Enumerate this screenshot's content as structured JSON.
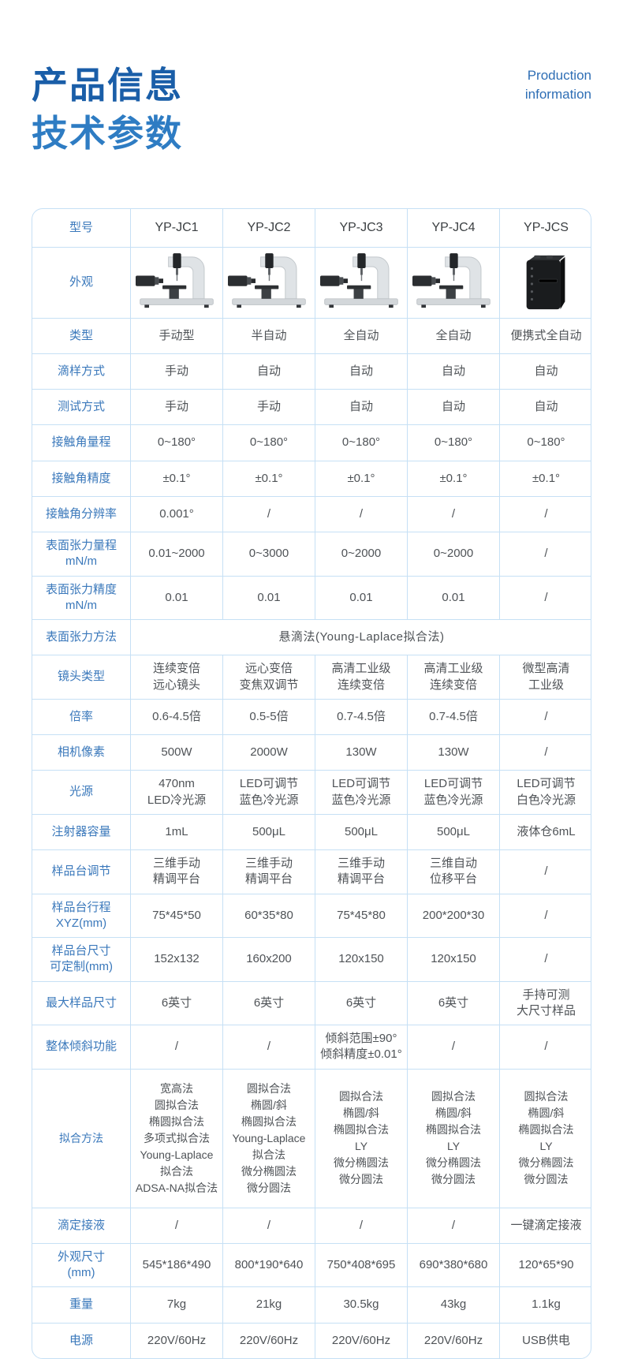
{
  "header": {
    "title_line1": "产品信息",
    "title_line2": "技术参数",
    "subtitle_line1": "Production",
    "subtitle_line2": "information"
  },
  "colors": {
    "title_dark_blue": "#1a5ea8",
    "title_light_blue": "#2e7cc3",
    "label_blue": "#3a78bb",
    "value_gray": "#4f5357",
    "table_border": "#c6e0f5"
  },
  "table": {
    "header": {
      "label": "型号",
      "models": [
        "YP-JC1",
        "YP-JC2",
        "YP-JC3",
        "YP-JC4",
        "YP-JCS"
      ]
    },
    "appearance": {
      "label": "外观",
      "images": [
        "goniometer-instrument-image",
        "goniometer-instrument-image",
        "goniometer-instrument-image",
        "goniometer-instrument-image",
        "portable-box-instrument-image"
      ]
    },
    "rows": [
      {
        "label": "类型",
        "values": [
          "手动型",
          "半自动",
          "全自动",
          "全自动",
          "便携式全自动"
        ]
      },
      {
        "label": "滴样方式",
        "values": [
          "手动",
          "自动",
          "自动",
          "自动",
          "自动"
        ]
      },
      {
        "label": "测试方式",
        "values": [
          "手动",
          "手动",
          "自动",
          "自动",
          "自动"
        ]
      },
      {
        "label": "接触角量程",
        "values": [
          "0~180°",
          "0~180°",
          "0~180°",
          "0~180°",
          "0~180°"
        ]
      },
      {
        "label": "接触角精度",
        "values": [
          "±0.1°",
          "±0.1°",
          "±0.1°",
          "±0.1°",
          "±0.1°"
        ]
      },
      {
        "label": "接触角分辨率",
        "values": [
          "0.001°",
          "/",
          "/",
          "/",
          "/"
        ]
      },
      {
        "label": "表面张力量程\nmN/m",
        "values": [
          "0.01~2000",
          "0~3000",
          "0~2000",
          "0~2000",
          "/"
        ]
      },
      {
        "label": "表面张力精度\nmN/m",
        "values": [
          "0.01",
          "0.01",
          "0.01",
          "0.01",
          "/"
        ]
      },
      {
        "label": "表面张力方法",
        "span": "悬滴法(Young-Laplace拟合法)"
      },
      {
        "label": "镜头类型",
        "values": [
          "连续变倍\n远心镜头",
          "远心变倍\n变焦双调节",
          "高清工业级\n连续变倍",
          "高清工业级\n连续变倍",
          "微型高清\n工业级"
        ]
      },
      {
        "label": "倍率",
        "values": [
          "0.6-4.5倍",
          "0.5-5倍",
          "0.7-4.5倍",
          "0.7-4.5倍",
          "/"
        ]
      },
      {
        "label": "相机像素",
        "values": [
          "500W",
          "2000W",
          "130W",
          "130W",
          "/"
        ]
      },
      {
        "label": "光源",
        "values": [
          "470nm\nLED冷光源",
          "LED可调节\n蓝色冷光源",
          "LED可调节\n蓝色冷光源",
          "LED可调节\n蓝色冷光源",
          "LED可调节\n白色冷光源"
        ]
      },
      {
        "label": "注射器容量",
        "values": [
          "1mL",
          "500μL",
          "500μL",
          "500μL",
          "液体仓6mL"
        ]
      },
      {
        "label": "样品台调节",
        "values": [
          "三维手动\n精调平台",
          "三维手动\n精调平台",
          "三维手动\n精调平台",
          "三维自动\n位移平台",
          "/"
        ]
      },
      {
        "label": "样品台行程\nXYZ(mm)",
        "values": [
          "75*45*50",
          "60*35*80",
          "75*45*80",
          "200*200*30",
          "/"
        ]
      },
      {
        "label": "样品台尺寸\n可定制(mm)",
        "values": [
          "152x132",
          "160x200",
          "120x150",
          "120x150",
          "/"
        ]
      },
      {
        "label": "最大样品尺寸",
        "values": [
          "6英寸",
          "6英寸",
          "6英寸",
          "6英寸",
          "手持可测\n大尺寸样品"
        ]
      },
      {
        "label": "整体倾斜功能",
        "values": [
          "/",
          "/",
          "倾斜范围±90°\n倾斜精度±0.01°",
          "/",
          "/"
        ]
      },
      {
        "label": "拟合方法",
        "tall": true,
        "values": [
          "宽高法\n圆拟合法\n椭圆拟合法\n多项式拟合法\nYoung-Laplace\n拟合法\nADSA-NA拟合法",
          "圆拟合法\n椭圆/斜\n椭圆拟合法\nYoung-Laplace\n拟合法\n微分椭圆法\n微分圆法",
          "圆拟合法\n椭圆/斜\n椭圆拟合法\nLY\n微分椭圆法\n微分圆法",
          "圆拟合法\n椭圆/斜\n椭圆拟合法\nLY\n微分椭圆法\n微分圆法",
          "圆拟合法\n椭圆/斜\n椭圆拟合法\nLY\n微分椭圆法\n微分圆法"
        ]
      },
      {
        "label": "滴定接液",
        "values": [
          "/",
          "/",
          "/",
          "/",
          "一键滴定接液"
        ]
      },
      {
        "label": "外观尺寸\n(mm)",
        "values": [
          "545*186*490",
          "800*190*640",
          "750*408*695",
          "690*380*680",
          "120*65*90"
        ]
      },
      {
        "label": "重量",
        "values": [
          "7kg",
          "21kg",
          "30.5kg",
          "43kg",
          "1.1kg"
        ]
      },
      {
        "label": "电源",
        "values": [
          "220V/60Hz",
          "220V/60Hz",
          "220V/60Hz",
          "220V/60Hz",
          "USB供电"
        ]
      }
    ]
  }
}
